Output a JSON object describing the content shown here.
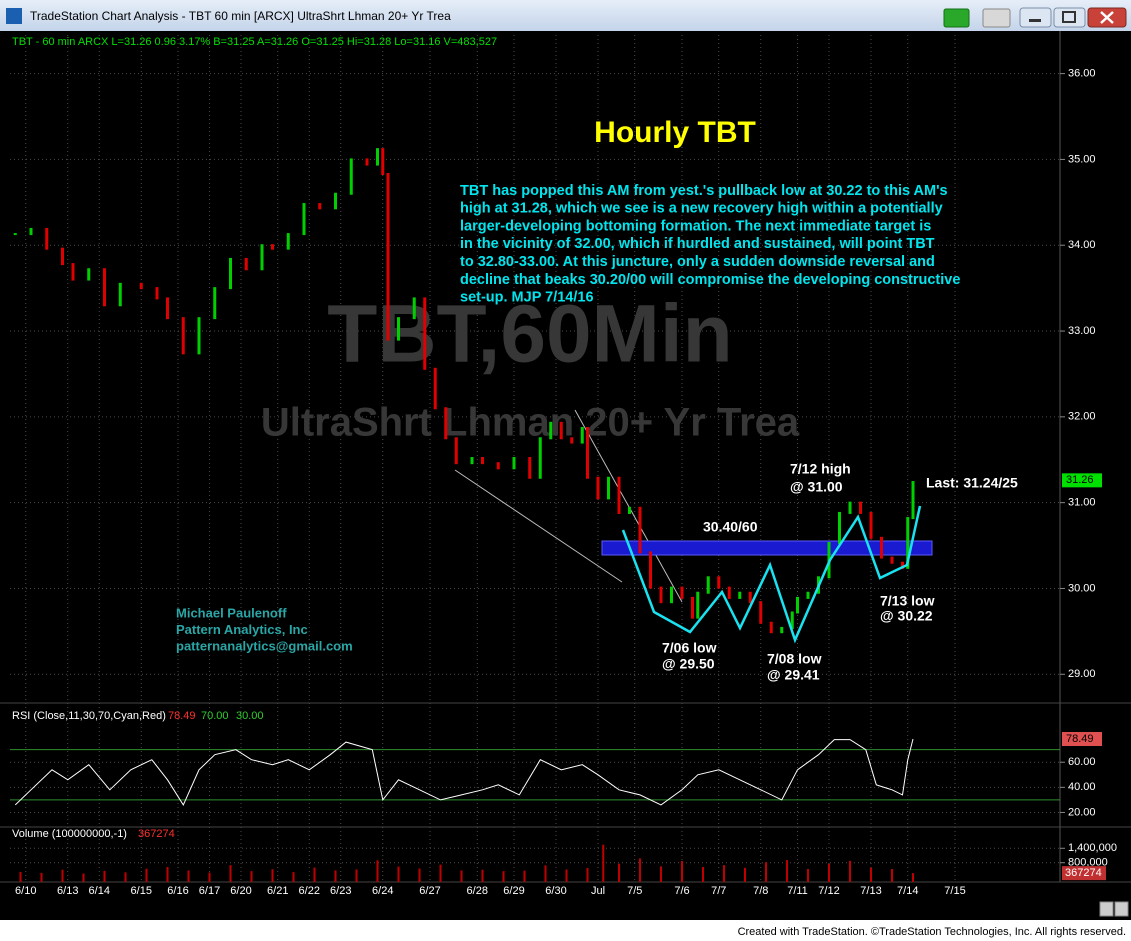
{
  "window": {
    "title": "TradeStation Chart Analysis - TBT 60 min [ARCX] UltraShrt Lhman 20+ Yr Trea",
    "footer": "Created with TradeStation. ©TradeStation Technologies, Inc. All rights reserved."
  },
  "chart_data": [
    {
      "type": "candle",
      "header": "TBT - 60 min  ARCX  L=31.26  0.96  3.17%  B=31.25  A=31.26  O=31.25  Hi=31.28  Lo=31.16  V=483,527",
      "watermark": "TBT,60Min",
      "watermark_subtitle": "UltraShrt Lhman 20+ Yr Trea",
      "title": "Hourly TBT",
      "commentary": [
        "TBT has popped this AM from yest.'s pullback low at 30.22 to this AM's",
        "high at 31.28, which we see is a new recovery high within a potentially",
        "larger-developing bottoming formation. The next immediate target is",
        "in the vicinity of 32.00, which if hurdled and sustained, will point TBT",
        "to 32.80-33.00. At this juncture, only a sudden downside reversal and",
        "decline that beaks 30.20/00 will compromise the developing constructive",
        "set-up.  MJP 7/14/16"
      ],
      "annotations": [
        "7/12 high",
        "@ 31.00",
        "Last: 31.24/25",
        "30.40/60",
        "7/06 low",
        "@ 29.50",
        "7/08 low",
        "@ 29.41",
        "7/13 low",
        "@ 30.22"
      ],
      "signature": [
        "Michael Paulenoff",
        "Pattern Analytics, Inc",
        "patternanalytics@gmail.com"
      ],
      "up_color": "#00d000",
      "down_color": "#e00000",
      "x": [
        1,
        4,
        7,
        10,
        12,
        15,
        18,
        21,
        25,
        28,
        30,
        33,
        36,
        39,
        42,
        45,
        48,
        50,
        53,
        56,
        59,
        62,
        65,
        68,
        70,
        71,
        72,
        74,
        77,
        79,
        81,
        83,
        85,
        88,
        90,
        93,
        96,
        99,
        101,
        103,
        105,
        107,
        109,
        110,
        112,
        114,
        116,
        118,
        120,
        122,
        124,
        126,
        128,
        130,
        131,
        133,
        135,
        137,
        139,
        141,
        143,
        145,
        147,
        149,
        150,
        152,
        154,
        156,
        158,
        160,
        162,
        164,
        166,
        168,
        170,
        171,
        172
      ],
      "values": [
        34.13,
        34.19,
        33.96,
        33.78,
        33.6,
        33.72,
        33.3,
        33.55,
        33.5,
        33.38,
        33.15,
        32.74,
        33.15,
        33.5,
        33.84,
        33.72,
        34.0,
        33.96,
        34.13,
        34.48,
        34.43,
        34.6,
        35.0,
        34.94,
        35.12,
        34.83,
        32.9,
        33.15,
        33.38,
        32.56,
        32.1,
        31.75,
        31.46,
        31.52,
        31.46,
        31.4,
        31.52,
        31.29,
        31.75,
        31.93,
        31.75,
        31.7,
        31.87,
        31.29,
        31.05,
        31.29,
        30.88,
        30.94,
        30.42,
        30.01,
        29.84,
        30.01,
        29.89,
        29.66,
        29.95,
        30.13,
        30.01,
        29.89,
        29.95,
        29.84,
        29.6,
        29.49,
        29.54,
        29.72,
        29.89,
        29.95,
        30.13,
        30.53,
        30.88,
        31.0,
        30.88,
        30.59,
        30.36,
        30.3,
        30.24,
        30.82,
        31.24
      ],
      "last_price": 31.26,
      "xlim": [
        0,
        200
      ],
      "xticks": [
        {
          "value": 3,
          "label": "6/10"
        },
        {
          "value": 11,
          "label": "6/13"
        },
        {
          "value": 17,
          "label": "6/14"
        },
        {
          "value": 25,
          "label": "6/15"
        },
        {
          "value": 32,
          "label": "6/16"
        },
        {
          "value": 38,
          "label": "6/17"
        },
        {
          "value": 44,
          "label": "6/20"
        },
        {
          "value": 51,
          "label": "6/21"
        },
        {
          "value": 57,
          "label": "6/22"
        },
        {
          "value": 63,
          "label": "6/23"
        },
        {
          "value": 71,
          "label": "6/24"
        },
        {
          "value": 80,
          "label": "6/27"
        },
        {
          "value": 89,
          "label": "6/28"
        },
        {
          "value": 96,
          "label": "6/29"
        },
        {
          "value": 104,
          "label": "6/30"
        },
        {
          "value": 112,
          "label": "Jul"
        },
        {
          "value": 119,
          "label": "7/5"
        },
        {
          "value": 128,
          "label": "7/6"
        },
        {
          "value": 135,
          "label": "7/7"
        },
        {
          "value": 143,
          "label": "7/8"
        },
        {
          "value": 150,
          "label": "7/11"
        },
        {
          "value": 156,
          "label": "7/12"
        },
        {
          "value": 164,
          "label": "7/13"
        },
        {
          "value": 171,
          "label": "7/14"
        },
        {
          "value": 180,
          "label": "7/15"
        }
      ],
      "ylim": [
        28.7,
        36.45
      ],
      "yticks": [
        {
          "value": 29,
          "label": "29.00"
        },
        {
          "value": 30,
          "label": "30.00"
        },
        {
          "value": 31,
          "label": "31.00"
        },
        {
          "value": 32,
          "label": "32.00"
        },
        {
          "value": 33,
          "label": "33.00"
        },
        {
          "value": 34,
          "label": "34.00"
        },
        {
          "value": 35,
          "label": "35.00"
        },
        {
          "value": 36,
          "label": "36.00"
        }
      ],
      "grid": true
    },
    {
      "type": "line",
      "label": "RSI (Close,11,30,70,Cyan,Red)",
      "color": "#ffffff",
      "levels": [
        {
          "value": 70,
          "label": "70.00"
        },
        {
          "value": 30,
          "label": "30.00"
        }
      ],
      "level_color": "#2f8f2f",
      "x": [
        1,
        4,
        8,
        11,
        15,
        19,
        23,
        27,
        30,
        33,
        36,
        39,
        43,
        46,
        50,
        53,
        57,
        61,
        64,
        69,
        71,
        74,
        78,
        82,
        86,
        90,
        93,
        97,
        101,
        105,
        109,
        112,
        116,
        120,
        124,
        128,
        131,
        135,
        139,
        143,
        147,
        150,
        154,
        157,
        160,
        163,
        165,
        168,
        170,
        171,
        172
      ],
      "values": [
        26,
        38,
        54,
        46,
        58,
        38,
        54,
        62,
        46,
        26,
        54,
        66,
        70,
        62,
        58,
        62,
        54,
        66,
        76,
        70,
        30,
        46,
        38,
        30,
        34,
        38,
        42,
        34,
        62,
        54,
        58,
        50,
        38,
        34,
        26,
        38,
        50,
        54,
        46,
        38,
        30,
        54,
        66,
        78,
        78,
        70,
        42,
        38,
        34,
        62,
        78.49
      ],
      "xlim": [
        0,
        200
      ],
      "ylim": [
        10,
        100
      ],
      "yticks": [
        {
          "value": 20,
          "label": "20.00"
        },
        {
          "value": 40,
          "label": "40.00"
        },
        {
          "value": 60,
          "label": "60.00"
        }
      ]
    },
    {
      "type": "bar",
      "label": "Volume (100000000,-1)",
      "color": "#c00000",
      "x": [
        2,
        6,
        10,
        14,
        18,
        22,
        26,
        30,
        34,
        38,
        42,
        46,
        50,
        54,
        58,
        62,
        66,
        70,
        74,
        78,
        82,
        86,
        90,
        94,
        98,
        102,
        106,
        110,
        113,
        116,
        120,
        124,
        128,
        132,
        136,
        140,
        144,
        148,
        152,
        156,
        160,
        164,
        168,
        172
      ],
      "values": [
        420000,
        380000,
        510000,
        350000,
        460000,
        400000,
        550000,
        620000,
        480000,
        390000,
        700000,
        450000,
        530000,
        410000,
        600000,
        480000,
        520000,
        900000,
        640000,
        560000,
        720000,
        480000,
        510000,
        450000,
        470000,
        690000,
        520000,
        580000,
        1550000,
        760000,
        980000,
        650000,
        870000,
        620000,
        700000,
        590000,
        820000,
        910000,
        540000,
        760000,
        880000,
        600000,
        540000,
        367274
      ],
      "xlim": [
        0,
        200
      ],
      "ylim": [
        0,
        2200000
      ],
      "yticks": [
        {
          "value": 1400000,
          "label": "1,400,000"
        },
        {
          "value": 800000,
          "label": "800,000"
        }
      ]
    }
  ]
}
